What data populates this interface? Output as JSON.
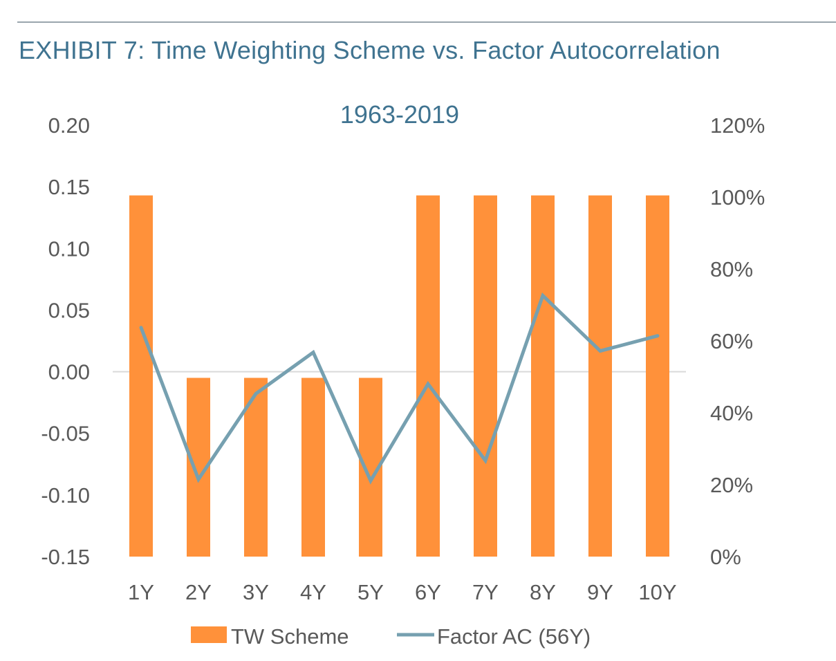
{
  "header": {
    "title": "EXHIBIT 7: Time Weighting Scheme vs. Factor Autocorrelation"
  },
  "chart_data": {
    "type": "bar+line",
    "title": "1963-2019",
    "categories": [
      "1Y",
      "2Y",
      "3Y",
      "4Y",
      "5Y",
      "6Y",
      "7Y",
      "8Y",
      "9Y",
      "10Y"
    ],
    "series": [
      {
        "name": "TW Scheme",
        "type": "bar",
        "axis": "left",
        "color": "#ff913a",
        "values": [
          0.143,
          -0.005,
          -0.005,
          -0.005,
          -0.005,
          0.143,
          0.143,
          0.143,
          0.143,
          0.143
        ]
      },
      {
        "name": "Factor AC (56Y)",
        "type": "line",
        "axis": "right",
        "color": "#76a0b0",
        "values": [
          63.7,
          21.5,
          45.3,
          56.8,
          21.1,
          48.0,
          26.7,
          72.6,
          57.2,
          61.4
        ]
      }
    ],
    "left_axis": {
      "ylim": [
        -0.15,
        0.2
      ],
      "ticks": [
        "0.20",
        "0.15",
        "0.10",
        "0.05",
        "0.00",
        "-0.05",
        "-0.10",
        "-0.15"
      ]
    },
    "right_axis": {
      "ylim": [
        0,
        120
      ],
      "unit": "%",
      "ticks": [
        "120%",
        "100%",
        "80%",
        "60%",
        "40%",
        "20%",
        "0%"
      ]
    },
    "grid": false,
    "legend": "bottom",
    "colors": {
      "title": "#3f7390",
      "axis_text": "#595959",
      "zero_line": "#d9d9d9"
    }
  }
}
